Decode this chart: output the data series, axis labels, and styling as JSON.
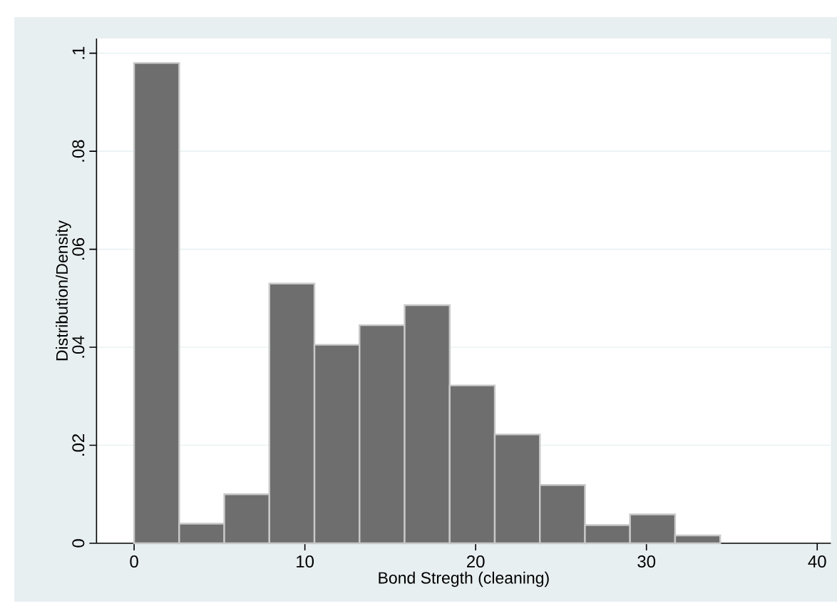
{
  "chart_data": {
    "type": "histogram",
    "xlabel": "Bond Stregth (cleaning)",
    "ylabel": "Distribution/Density",
    "bins": [
      0,
      2.64,
      5.28,
      7.92,
      10.56,
      13.2,
      15.84,
      18.48,
      21.12,
      23.76,
      26.4,
      29.04,
      31.68,
      34.32
    ],
    "values": [
      0.098,
      0.004,
      0.01,
      0.053,
      0.0405,
      0.0445,
      0.0486,
      0.0322,
      0.0222,
      0.0119,
      0.0037,
      0.0059,
      0.0016
    ],
    "color": "#6e6e6e",
    "xlim": [
      -2.2,
      40.8
    ],
    "ylim": [
      0,
      0.103
    ],
    "xticks": [
      0,
      10,
      20,
      30,
      40
    ],
    "yticks": [
      {
        "value": 0,
        "label": "0"
      },
      {
        "value": 0.02,
        "label": ".02"
      },
      {
        "value": 0.04,
        "label": ".04"
      },
      {
        "value": 0.06,
        "label": ".06"
      },
      {
        "value": 0.08,
        "label": ".08"
      },
      {
        "value": 0.1,
        "label": ".1"
      }
    ],
    "grid": "y"
  }
}
